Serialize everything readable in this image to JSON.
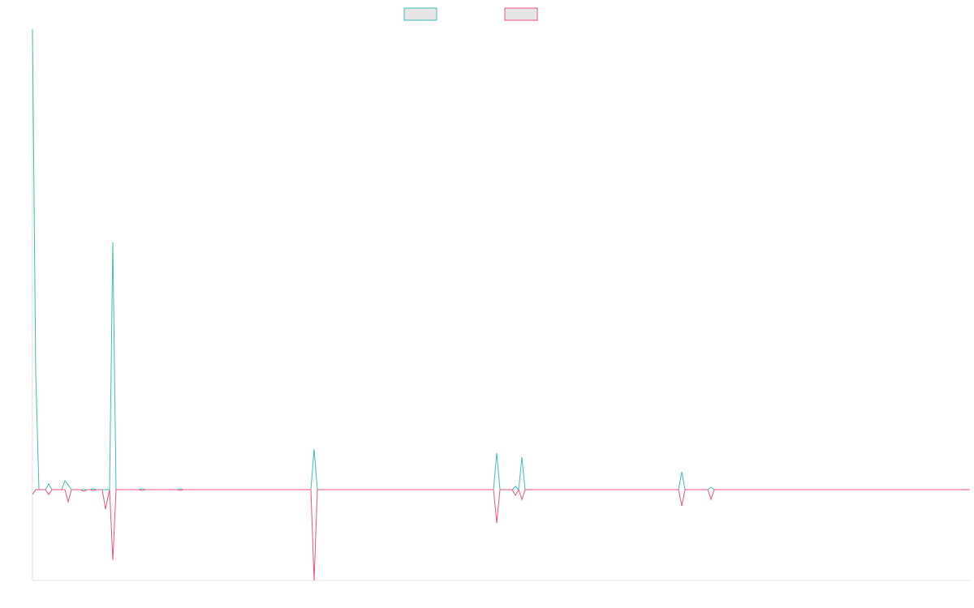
{
  "chart_data": {
    "type": "line",
    "legend": "top",
    "xlim": [
      0,
      1155
    ],
    "ylim": [
      -112,
      568
    ],
    "x": [
      0,
      4,
      8,
      16,
      20,
      24,
      36,
      40,
      44,
      48,
      59,
      63,
      67,
      71,
      75,
      79,
      86,
      90,
      95,
      99,
      103,
      131,
      135,
      139,
      178,
      182,
      186,
      343,
      347,
      351,
      568,
      572,
      576,
      591,
      595,
      599,
      603,
      607,
      611,
      796,
      800,
      804,
      832,
      836,
      840,
      1155
    ],
    "series": [
      {
        "color": "#3dbdb5",
        "values": [
          568,
          144,
          0,
          0,
          7,
          0,
          0,
          11,
          6,
          0,
          0,
          0,
          0,
          0,
          1,
          0,
          0,
          0,
          0,
          305,
          0,
          0,
          1,
          0,
          0,
          1,
          0,
          0,
          50,
          0,
          0,
          45,
          0,
          0,
          4,
          0,
          40,
          0,
          0,
          0,
          22,
          0,
          0,
          3,
          0,
          0
        ]
      },
      {
        "color": "#f0507e",
        "values": [
          -6,
          0,
          0,
          0,
          -6,
          0,
          0,
          0,
          -15,
          0,
          0,
          -2,
          0,
          0,
          -1,
          0,
          0,
          -24,
          0,
          -87,
          0,
          0,
          -1,
          0,
          0,
          -1,
          0,
          0,
          -112,
          0,
          0,
          -41,
          0,
          0,
          -7,
          0,
          -12,
          0,
          0,
          0,
          -20,
          0,
          0,
          -12,
          0,
          0
        ]
      }
    ]
  }
}
